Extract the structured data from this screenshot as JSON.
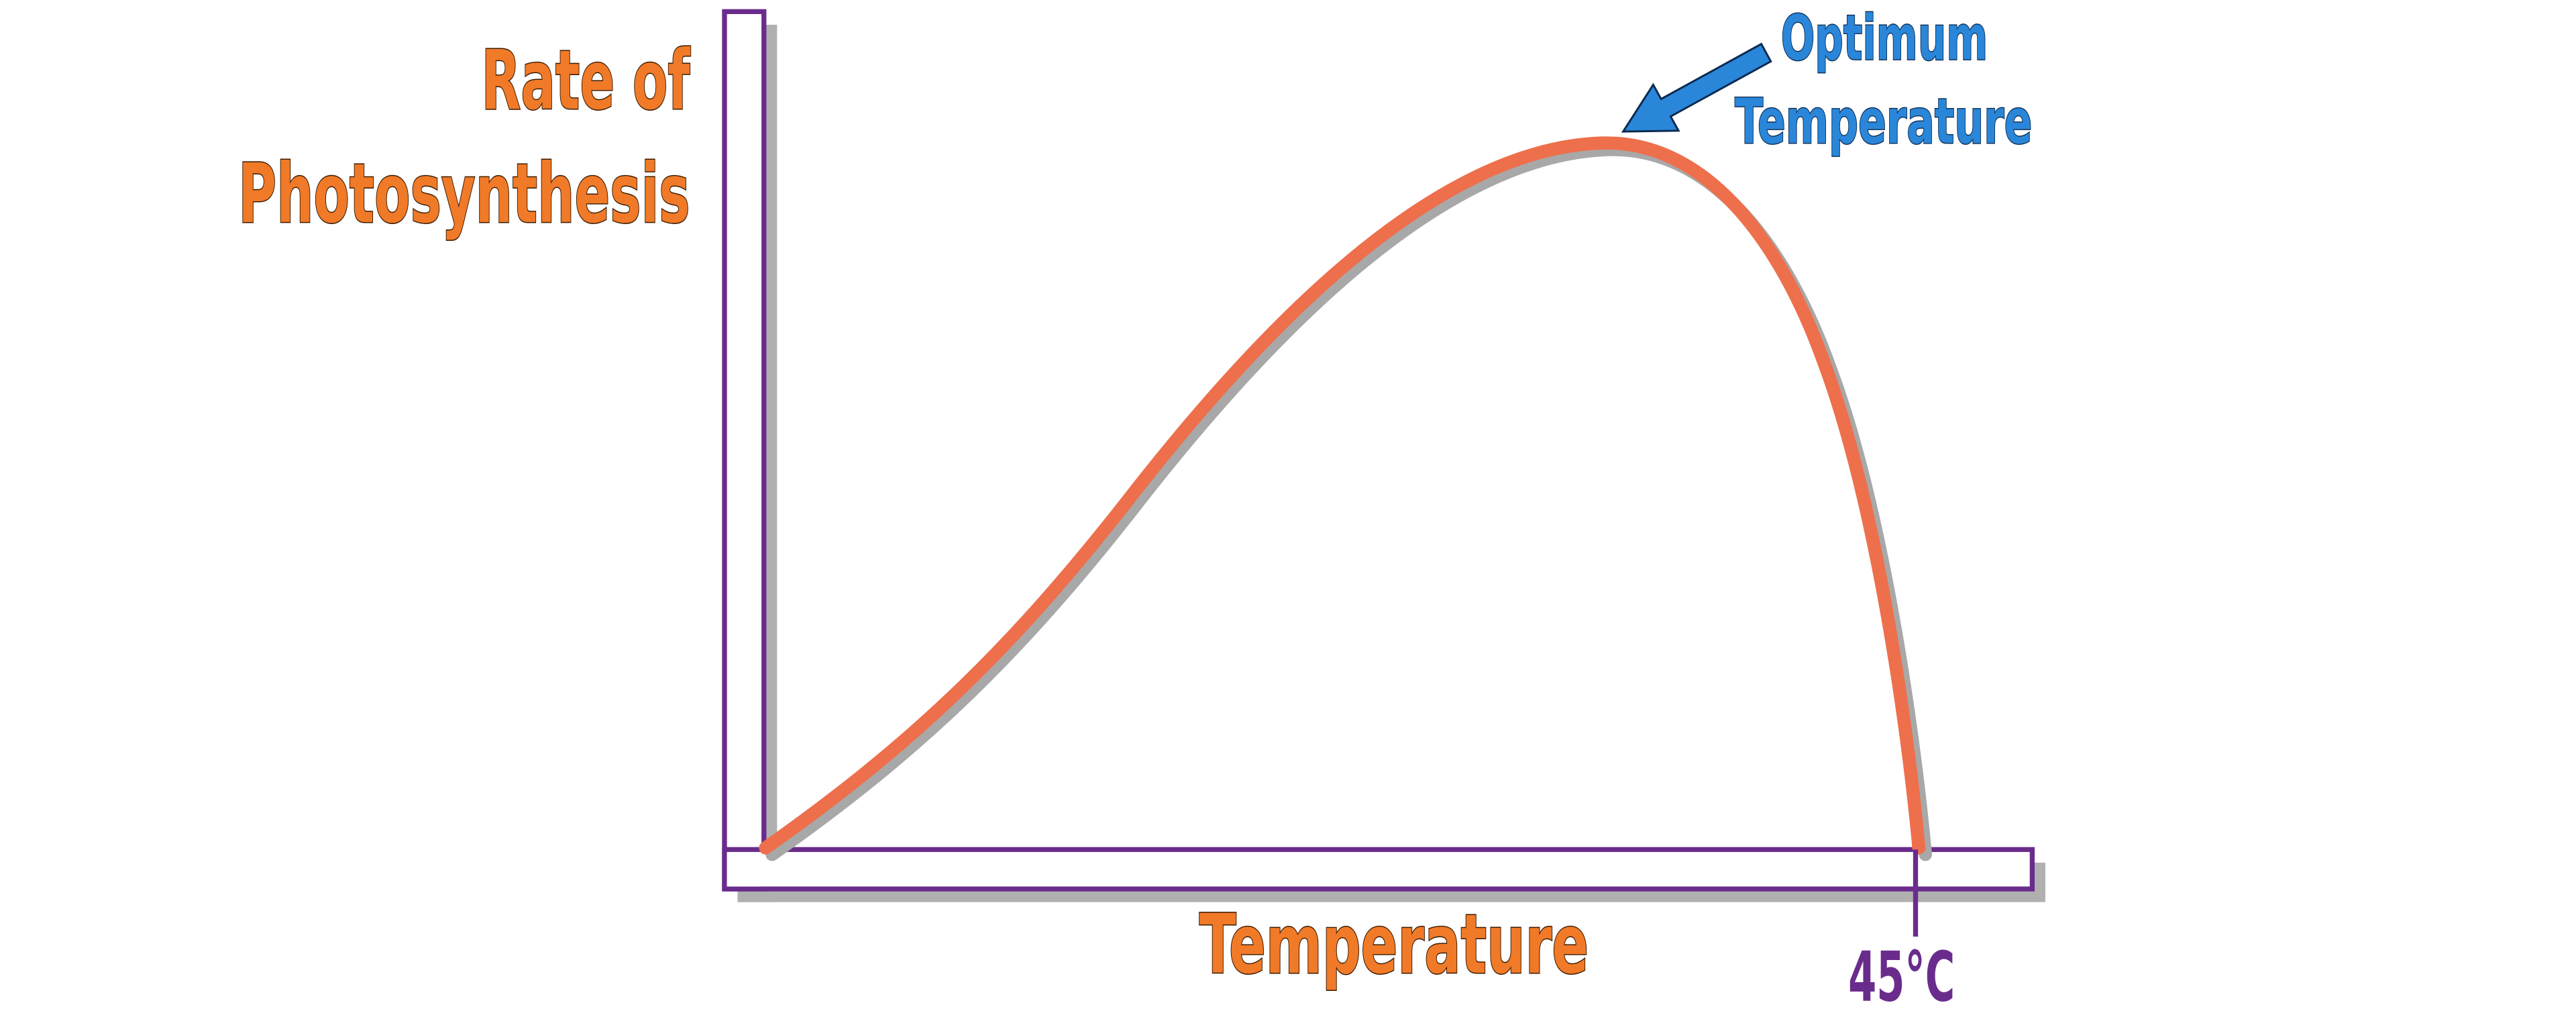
{
  "y_axis_label": {
    "lines": [
      "Rate of",
      "Photosynthesis"
    ]
  },
  "x_axis_label": "Temperature",
  "annotation": {
    "lines": [
      "Optimum",
      "Temperature"
    ]
  },
  "x_tick_label": "45°C"
}
